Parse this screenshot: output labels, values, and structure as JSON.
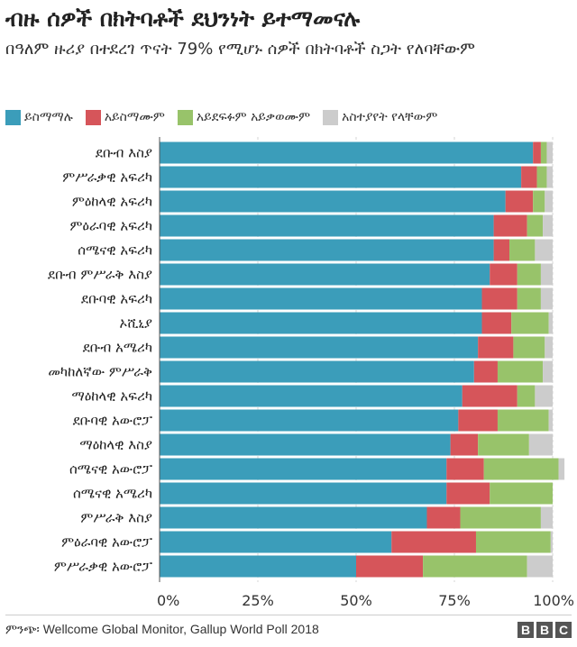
{
  "header": {
    "title": "ብዙ ሰዎች በክትባቶች ደህንነት ይተማመናሉ",
    "subtitle": "በዓለም ዙሪያ በተደረገ ጥናት 79% የሚሆኑ ሰዎች በክትባቶች ስጋት የለባቸውም"
  },
  "footer": {
    "source": "ምንጭ፡ Wellcome Global Monitor, Gallup World Poll 2018",
    "logo_letters": [
      "B",
      "B",
      "C"
    ]
  },
  "chart_data": {
    "type": "bar",
    "orientation": "horizontal",
    "stacked": true,
    "title": "ብዙ ሰዎች በክትባቶች ደህንነት ይተማመናሉ",
    "subtitle": "በዓለም ዙሪያ በተደረገ ጥናት 79% የሚሆኑ ሰዎች በክትባቶች ስጋት የለባቸውም",
    "legend_position": "top",
    "grid": true,
    "xlim": [
      0,
      100
    ],
    "x_ticks": [
      0,
      25,
      50,
      75,
      100
    ],
    "x_tick_labels": [
      "0%",
      "25%",
      "50%",
      "75%",
      "100%"
    ],
    "categories": [
      "ደቡብ እስያ",
      "ምሥራቃዊ አፍሪካ",
      "ምዕከላዊ አፍሪካ",
      "ምዕራባዊ አፍሪካ",
      "ሰሜናዊ አፍሪካ",
      "ደቡብ ምሥራቅ እስያ",
      "ደቡባዊ አፍሪካ",
      "ኦሺኒያ",
      "ደቡብ አሜሪካ",
      "መካከለኛው ምሥራቅ",
      "ማዕከላዊ አፍሪካ",
      "ደቡባዊ አውሮፓ",
      "ማዕከላዊ እስያ",
      "ሰሜናዊ አውሮፓ",
      "ሰሜናዊ አሜሪካ",
      "ምሥራቅ እስያ",
      "ምዕራባዊ አውሮፓ",
      "ምሥራቃዊ አውሮፓ"
    ],
    "series": [
      {
        "name": "ይስማማሉ",
        "color": "#3b9dba",
        "values": [
          95,
          92,
          88,
          85,
          85,
          84,
          82,
          82,
          81,
          80,
          77,
          76,
          74,
          73,
          73,
          68,
          59,
          50
        ]
      },
      {
        "name": "አይስማሙም",
        "color": "#d6555a",
        "values": [
          2,
          4,
          7,
          8.5,
          4,
          7,
          9,
          7.5,
          9,
          6,
          14,
          10,
          7,
          9.5,
          11,
          8.5,
          21.5,
          17
        ]
      },
      {
        "name": "አይደፍፉም አይቃወሙም",
        "color": "#98c36a",
        "values": [
          1.5,
          2.5,
          3,
          4,
          6.5,
          6,
          6,
          9.5,
          8,
          11.5,
          4.5,
          13,
          13,
          19,
          16,
          20.5,
          19,
          26.5
        ]
      },
      {
        "name": "አስተያየት የላቸውም",
        "color": "#cccccc",
        "values": [
          1.5,
          1.5,
          2,
          2.5,
          4.5,
          3,
          3,
          1,
          2,
          2.5,
          4.5,
          1,
          6,
          1.5,
          0,
          3,
          0.5,
          6.5
        ]
      }
    ]
  }
}
